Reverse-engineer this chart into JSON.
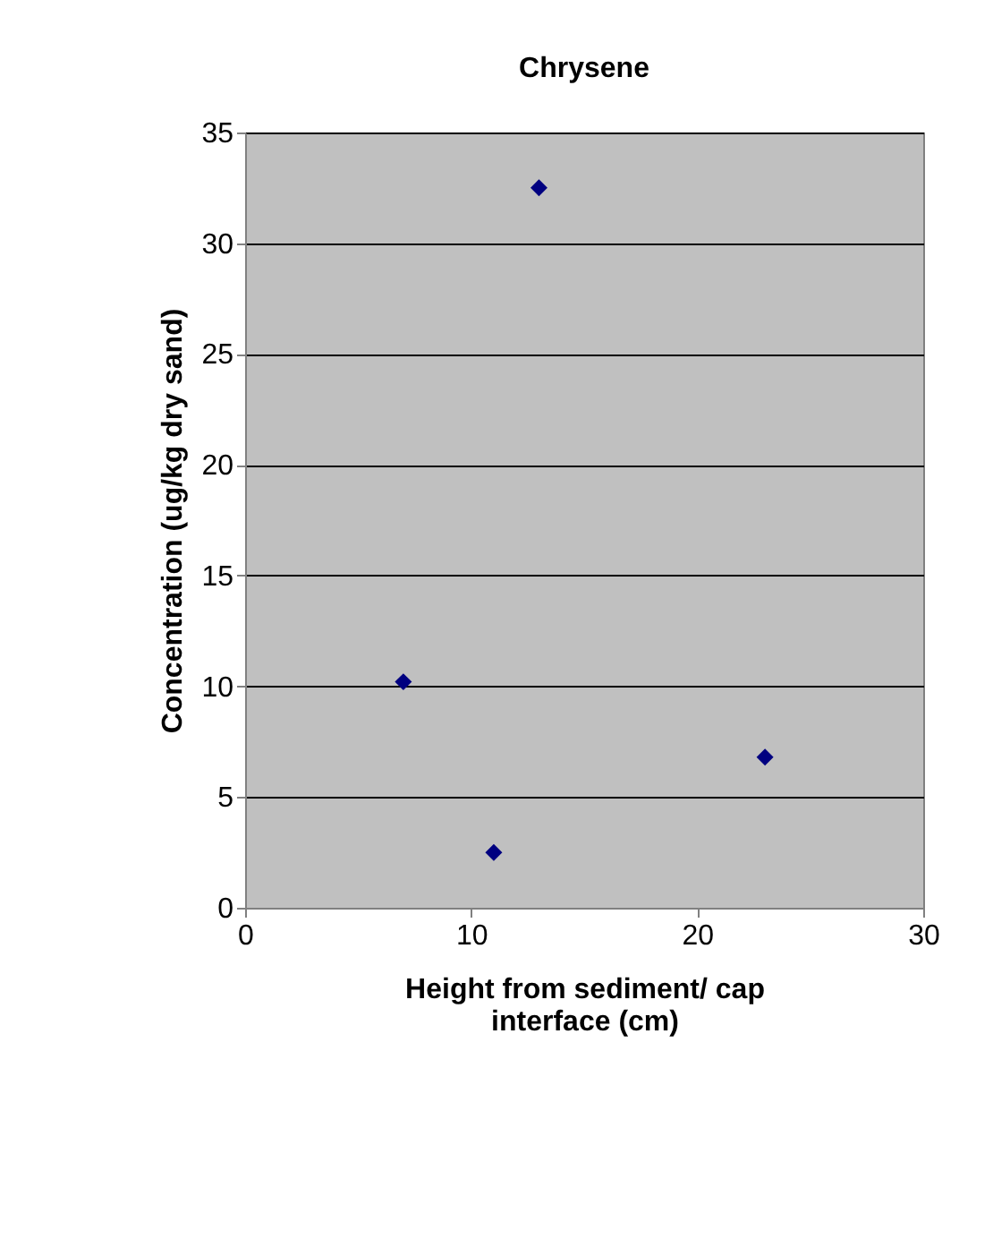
{
  "chart_data": {
    "type": "scatter",
    "title": "Chrysene",
    "xlabel": "Height from sediment/ cap interface (cm)",
    "ylabel": "Concentration (ug/kg dry sand)",
    "x": [
      7,
      11,
      13,
      23
    ],
    "series": [
      {
        "color": "#000080",
        "values": [
          10.2,
          2.5,
          32.5,
          6.8
        ]
      }
    ],
    "xlim": [
      0,
      30
    ],
    "xticks": [
      0,
      10,
      20,
      30
    ],
    "ylim": [
      0,
      35
    ],
    "yticks": [
      0,
      5,
      10,
      15,
      20,
      25,
      30,
      35
    ],
    "grid": "y",
    "marker": "diamond"
  }
}
